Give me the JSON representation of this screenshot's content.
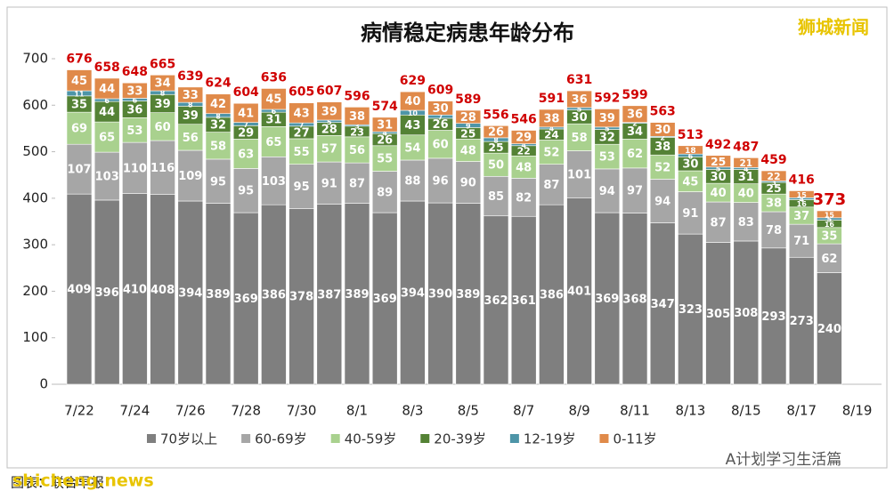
{
  "chart_data": {
    "type": "stacked_bar",
    "title": "病情稳定病患年龄分布",
    "categories": [
      "7/22",
      null,
      "7/24",
      null,
      "7/26",
      null,
      "7/28",
      null,
      "7/30",
      null,
      "8/1",
      null,
      "8/3",
      null,
      "8/5",
      null,
      "8/7",
      null,
      "8/9",
      null,
      "8/11",
      null,
      "8/13",
      null,
      "8/15",
      null,
      "8/17",
      null,
      "8/19"
    ],
    "series": [
      {
        "name": "70岁以上",
        "color": "#7f7f7f",
        "values": [
          409,
          396,
          410,
          408,
          394,
          389,
          369,
          386,
          378,
          387,
          389,
          369,
          394,
          390,
          389,
          362,
          361,
          386,
          401,
          369,
          368,
          347,
          323,
          305,
          308,
          293,
          273,
          240,
          null
        ]
      },
      {
        "name": "60-69岁",
        "color": "#a6a6a6",
        "values": [
          107,
          103,
          110,
          116,
          109,
          95,
          95,
          103,
          95,
          91,
          87,
          89,
          88,
          96,
          90,
          85,
          82,
          87,
          101,
          94,
          97,
          94,
          91,
          87,
          83,
          78,
          71,
          62,
          null
        ]
      },
      {
        "name": "40-59岁",
        "color": "#a9d18e",
        "values": [
          69,
          65,
          53,
          60,
          56,
          58,
          63,
          65,
          55,
          57,
          56,
          55,
          54,
          60,
          48,
          50,
          48,
          52,
          58,
          53,
          62,
          52,
          45,
          40,
          40,
          38,
          37,
          35,
          null
        ]
      },
      {
        "name": "20-39岁",
        "color": "#548235",
        "values": [
          35,
          44,
          36,
          39,
          39,
          32,
          29,
          31,
          27,
          28,
          23,
          26,
          43,
          26,
          25,
          25,
          22,
          24,
          30,
          32,
          34,
          38,
          30,
          30,
          31,
          25,
          16,
          16,
          null
        ]
      },
      {
        "name": "12-19岁",
        "color": "#4e95a8",
        "values": [
          11,
          6,
          6,
          8,
          8,
          8,
          7,
          6,
          7,
          5,
          3,
          4,
          10,
          7,
          9,
          8,
          4,
          4,
          5,
          5,
          2,
          2,
          6,
          5,
          4,
          3,
          4,
          5,
          null
        ]
      },
      {
        "name": "0-11岁",
        "color": "#e08a4a",
        "values": [
          45,
          44,
          33,
          34,
          33,
          42,
          41,
          45,
          43,
          39,
          38,
          31,
          40,
          30,
          28,
          26,
          29,
          38,
          36,
          39,
          36,
          30,
          18,
          25,
          21,
          22,
          15,
          15,
          null
        ]
      }
    ],
    "totals": [
      676,
      658,
      648,
      665,
      639,
      624,
      604,
      636,
      605,
      607,
      596,
      574,
      629,
      609,
      589,
      556,
      546,
      591,
      631,
      592,
      599,
      563,
      513,
      492,
      487,
      459,
      416,
      373,
      null
    ],
    "ylim": [
      0,
      700
    ],
    "yticks": [
      0,
      100,
      200,
      300,
      400,
      500,
      600,
      700
    ],
    "grid": false,
    "annotations": [
      "狮城新闻",
      "图表：联合早报",
      "shicheng.news",
      "A计划学习生活篇"
    ]
  }
}
